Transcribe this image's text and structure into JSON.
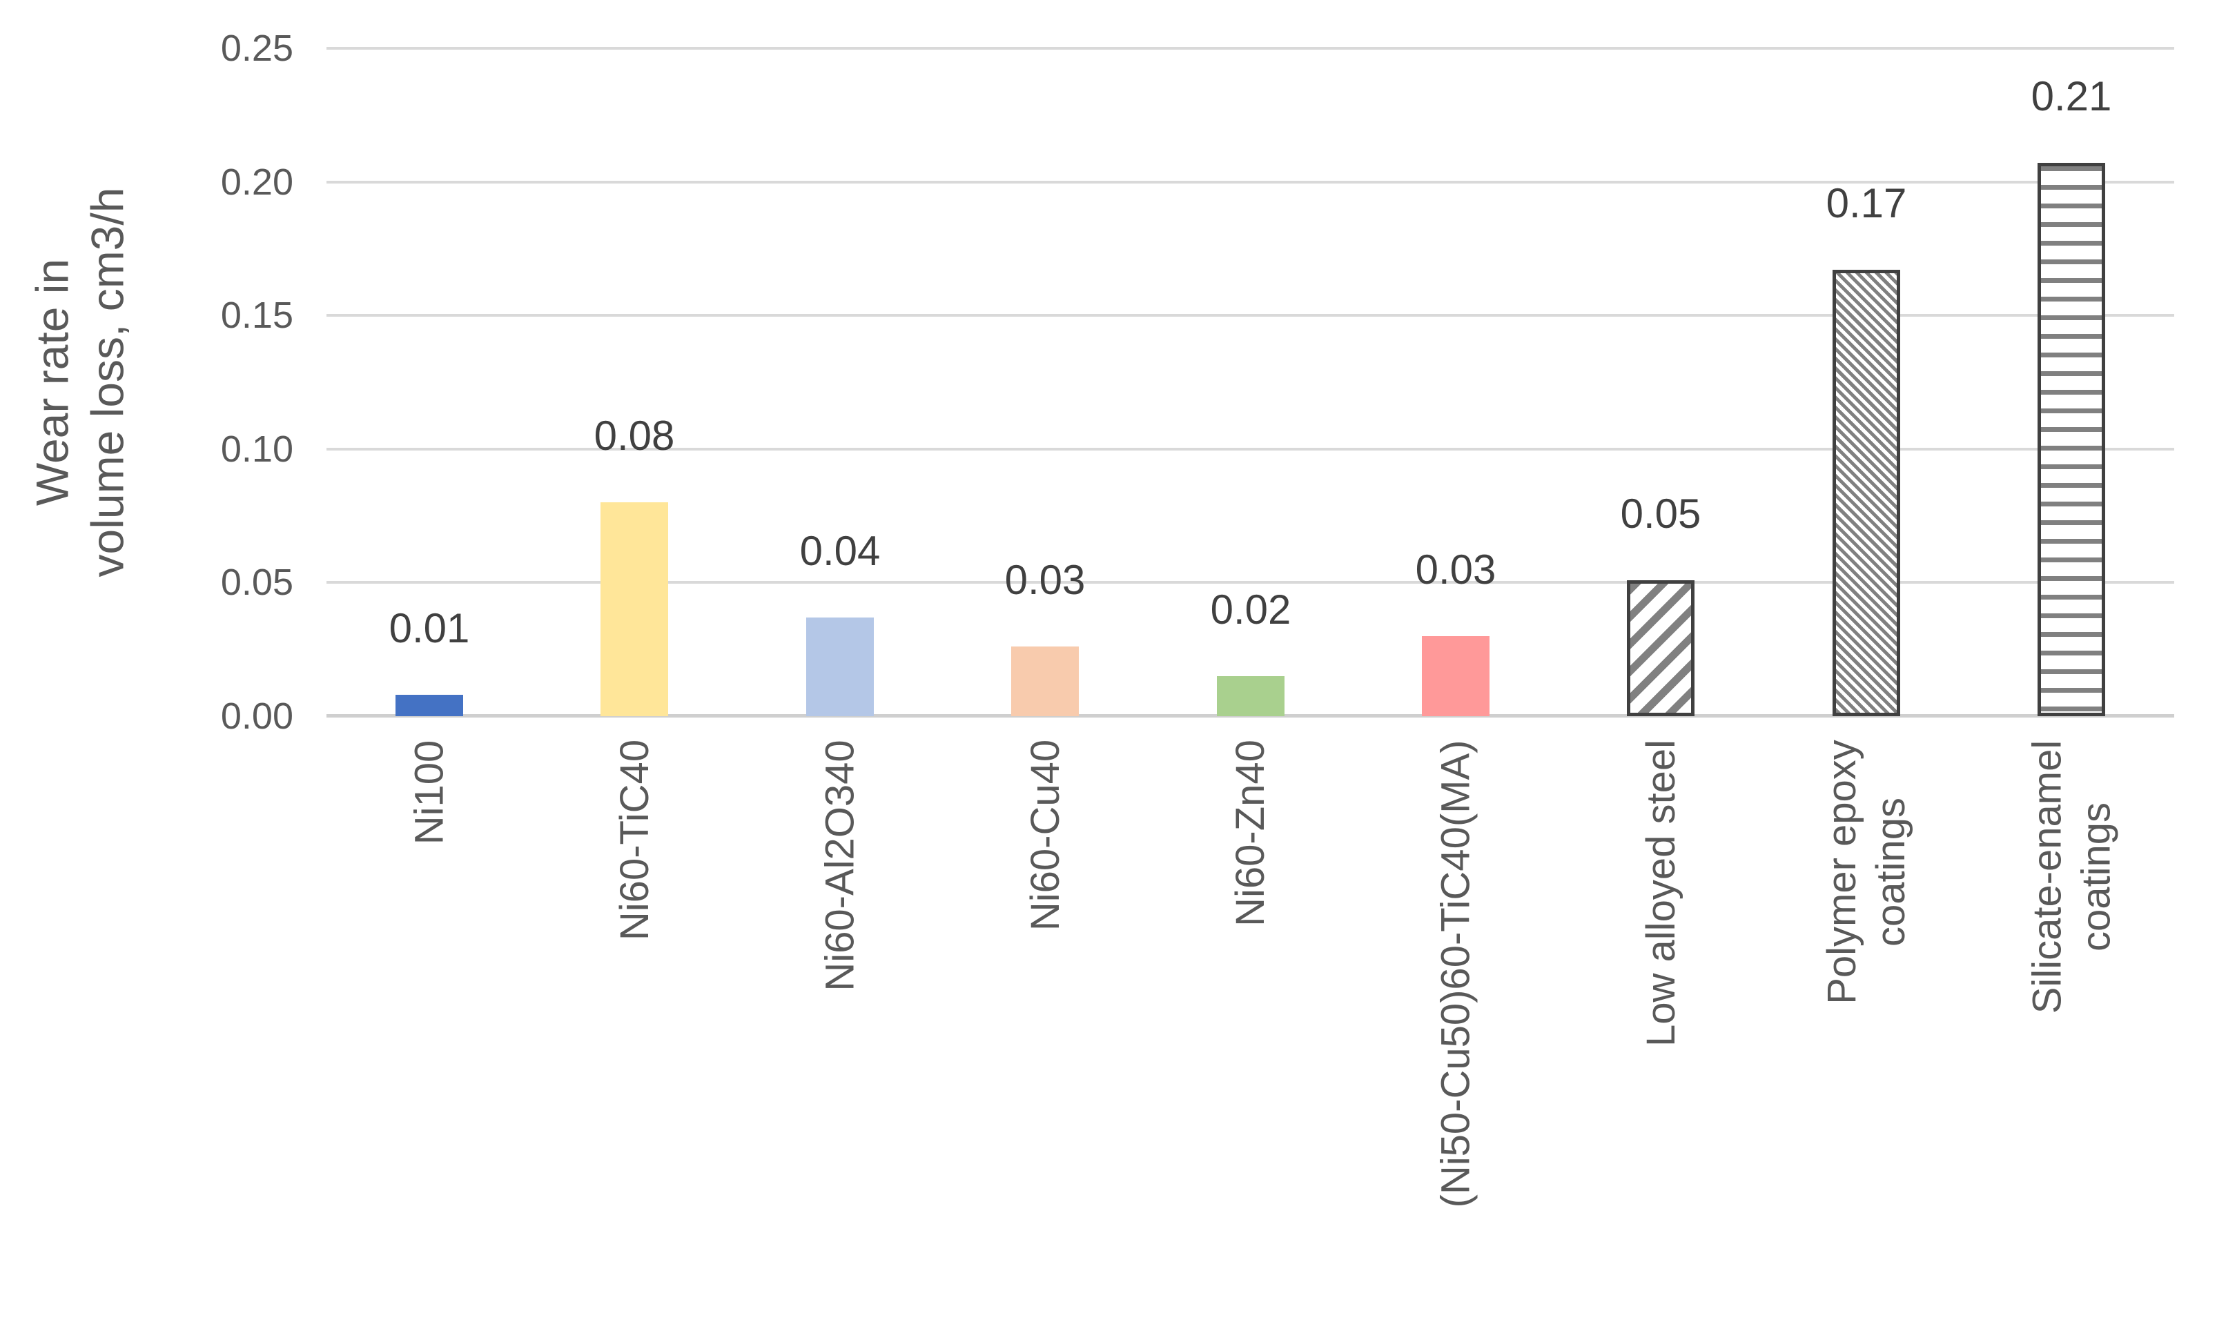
{
  "chart_data": {
    "type": "bar",
    "title": "",
    "xlabel": "",
    "ylabel": "Wear rate in volume loss, cm3/h",
    "ylabel_lines": [
      "Wear rate in",
      "volume loss, cm3/h"
    ],
    "categories": [
      "Ni100",
      "Ni60-TiC40",
      "Ni60-Al2O340",
      "Ni60-Cu40",
      "Ni60-Zn40",
      "(Ni50-Cu50)60-TiC40(MA)",
      "Low alloyed steel",
      "Polymer epoxy coatings",
      "Silicate-enamel coatings"
    ],
    "category_lines": [
      [
        "Ni100"
      ],
      [
        "Ni60-TiC40"
      ],
      [
        "Ni60-Al2O340"
      ],
      [
        "Ni60-Cu40"
      ],
      [
        "Ni60-Zn40"
      ],
      [
        "(Ni50-Cu50)60-TiC40(MA)"
      ],
      [
        "Low alloyed steel"
      ],
      [
        "Polymer epoxy",
        "coatings"
      ],
      [
        "Silicate-enamel",
        "coatings"
      ]
    ],
    "values": [
      0.01,
      0.08,
      0.04,
      0.03,
      0.02,
      0.03,
      0.05,
      0.17,
      0.21
    ],
    "data_labels": [
      "0.01",
      "0.08",
      "0.04",
      "0.03",
      "0.02",
      "0.03",
      "0.05",
      "0.17",
      "0.21"
    ],
    "bar_pixel_values": [
      0.008,
      0.08,
      0.037,
      0.026,
      0.015,
      0.03,
      0.051,
      0.167,
      0.207
    ],
    "yticks": [
      "0.00",
      "0.05",
      "0.10",
      "0.15",
      "0.20",
      "0.25"
    ],
    "ytick_step": 0.05,
    "ylim": [
      0,
      0.25
    ],
    "grid": true,
    "legend": "none",
    "bar_styles": [
      {
        "type": "solid",
        "color": "#4472C4"
      },
      {
        "type": "solid",
        "color": "#FFE699"
      },
      {
        "type": "solid",
        "color": "#B4C7E7"
      },
      {
        "type": "solid",
        "color": "#F8CBAD"
      },
      {
        "type": "solid",
        "color": "#A9D08E"
      },
      {
        "type": "solid",
        "color": "#FF9999"
      },
      {
        "type": "pattern",
        "pattern": "diagonal-wide",
        "stripe": "#808080",
        "bg": "#FFFFFF",
        "border": "#404040"
      },
      {
        "type": "pattern",
        "pattern": "diagonal-fine",
        "stripe": "#808080",
        "bg": "#FFFFFF",
        "border": "#404040"
      },
      {
        "type": "pattern",
        "pattern": "horizontal-lines",
        "stripe": "#808080",
        "bg": "#FFFFFF",
        "border": "#404040"
      }
    ],
    "colors": {
      "axis_text": "#595959",
      "data_label": "#404040",
      "gridline": "#D9D9D9",
      "baseline": "#CFCFCF"
    }
  }
}
